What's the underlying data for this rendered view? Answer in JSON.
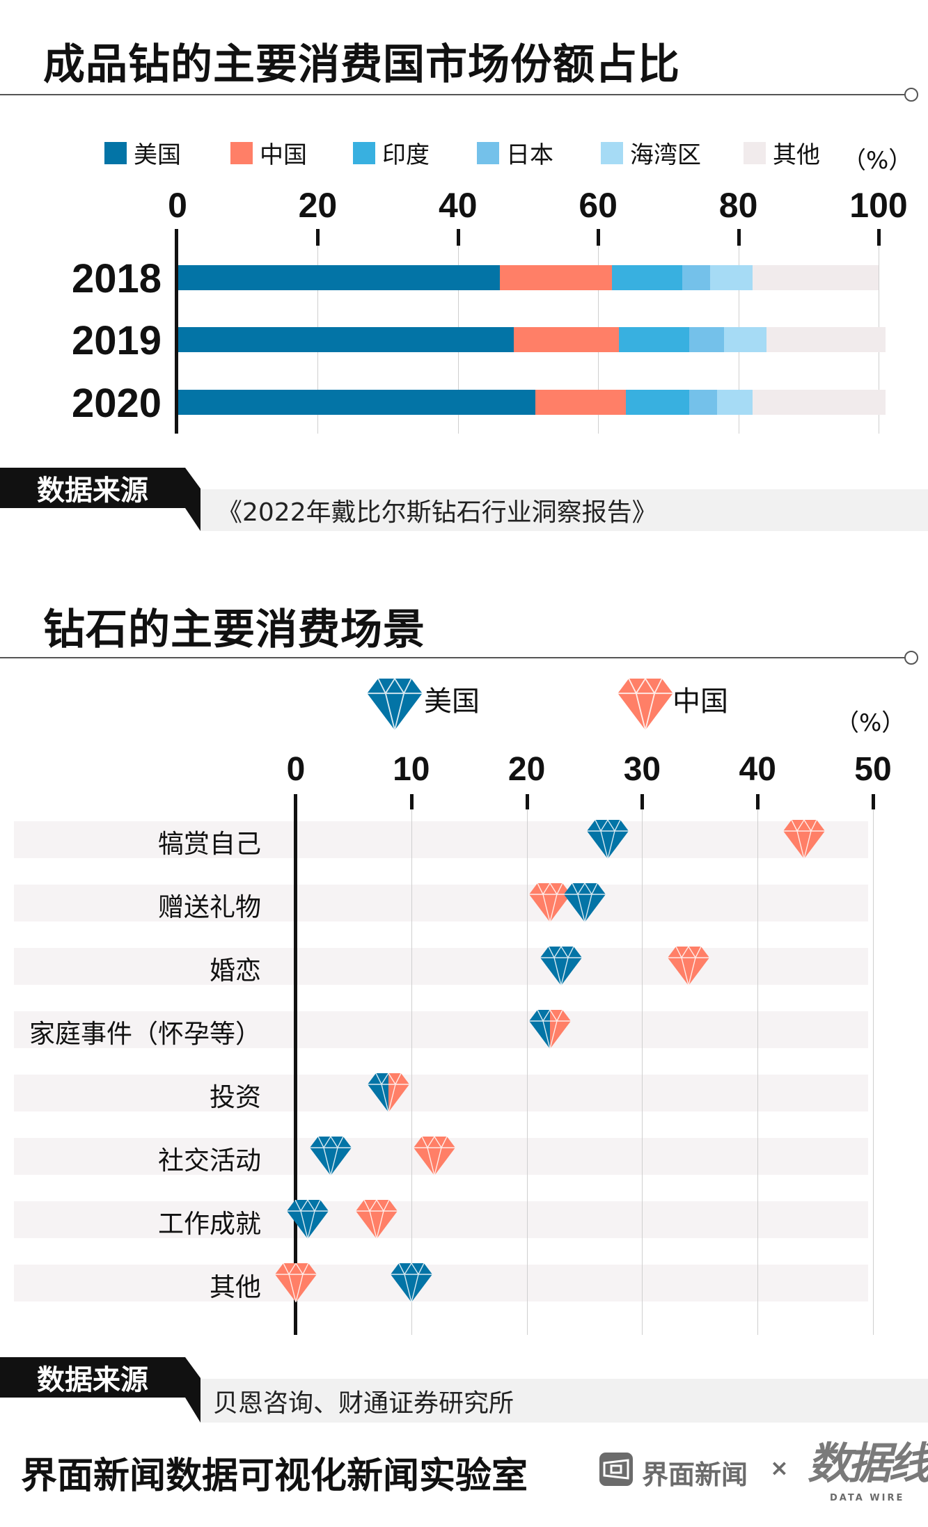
{
  "colors": {
    "us": "#0374a6",
    "cn": "#ff7f67",
    "india": "#38b0e0",
    "japan": "#74c1ea",
    "gulf": "#a6dbf5",
    "other": "#f1ebec"
  },
  "chart_data": [
    {
      "type": "bar",
      "stacked": true,
      "orientation": "horizontal",
      "title": "成品钻的主要消费国市场份额占比",
      "unit": "（%）",
      "categories": [
        "2018",
        "2019",
        "2020"
      ],
      "xlim": [
        0,
        100
      ],
      "xticks": [
        "0",
        "20",
        "40",
        "60",
        "80",
        "100"
      ],
      "grid": true,
      "legend_position": "top",
      "series": [
        {
          "name": "美国",
          "key": "us",
          "values": [
            46,
            48,
            51
          ]
        },
        {
          "name": "中国",
          "key": "cn",
          "values": [
            16,
            15,
            13
          ]
        },
        {
          "name": "印度",
          "key": "india",
          "values": [
            10,
            10,
            9
          ]
        },
        {
          "name": "日本",
          "key": "japan",
          "values": [
            4,
            5,
            4
          ]
        },
        {
          "name": "海湾区",
          "key": "gulf",
          "values": [
            6,
            6,
            5
          ]
        },
        {
          "name": "其他",
          "key": "other",
          "values": [
            18,
            17,
            19
          ]
        }
      ],
      "source_label": "数据来源",
      "source": "《2022年戴比尔斯钻石行业洞察报告》"
    },
    {
      "type": "scatter",
      "marker": "diamond",
      "title": "钻石的主要消费场景",
      "unit": "（%）",
      "categories": [
        "犒赏自己",
        "赠送礼物",
        "婚恋",
        "家庭事件（怀孕等）",
        "投资",
        "社交活动",
        "工作成就",
        "其他"
      ],
      "xlim": [
        0,
        50
      ],
      "xticks": [
        "0",
        "10",
        "20",
        "30",
        "40",
        "50"
      ],
      "grid": true,
      "legend_position": "top",
      "series": [
        {
          "name": "美国",
          "key": "us",
          "values": [
            27,
            25,
            23,
            22,
            8,
            3,
            1,
            10
          ]
        },
        {
          "name": "中国",
          "key": "cn",
          "values": [
            44,
            22,
            34,
            22,
            8,
            12,
            7,
            0
          ]
        }
      ],
      "source_label": "数据来源",
      "source": "贝恩咨询、财通证券研究所"
    }
  ],
  "footer": {
    "title": "界面新闻数据可视化新闻实验室",
    "logo1_text": "界面新闻",
    "times": "×",
    "logo2_text": "数据线",
    "logo2_sub": "DATA WIRE"
  }
}
